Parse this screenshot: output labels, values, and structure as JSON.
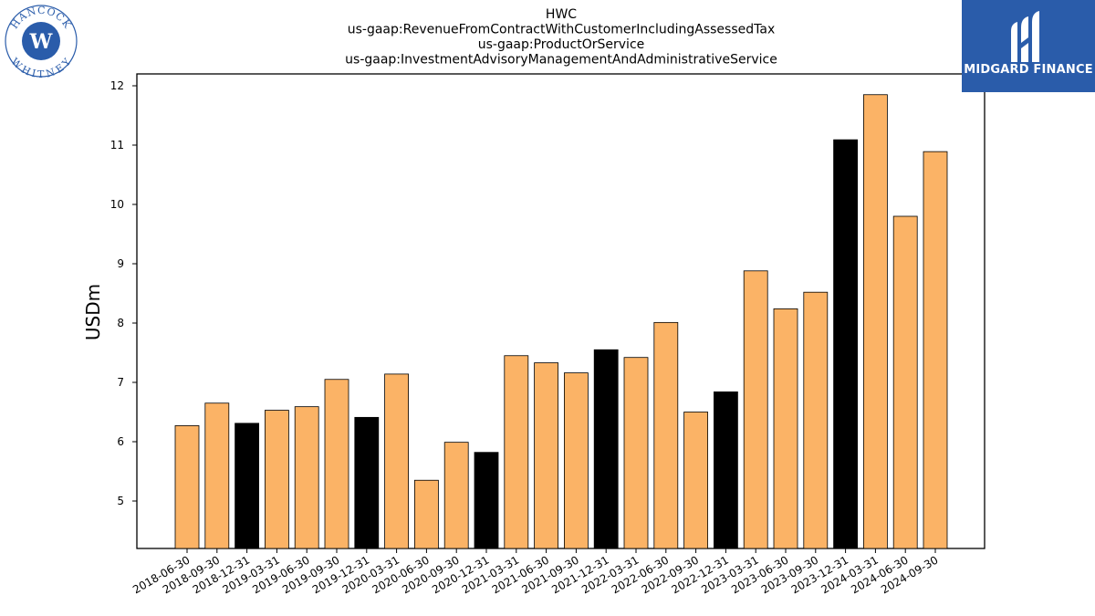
{
  "header": {
    "title_lines": [
      "HWC",
      "us-gaap:RevenueFromContractWithCustomerIncludingAssessedTax",
      "us-gaap:ProductOrService",
      "us-gaap:InvestmentAdvisoryManagementAndAdministrativeService"
    ]
  },
  "logo": {
    "name": "HANCOCK WHITNEY",
    "top_text": "HANCOCK",
    "bottom_text": "WHITNEY",
    "color": "#2a5caa"
  },
  "brand": {
    "name": "MIDGARD FINANCE",
    "background": "#2a5caa"
  },
  "chart_data": {
    "type": "bar",
    "title": "HWC",
    "ylabel": "USDm",
    "xlabel": "",
    "ylim": [
      4.2,
      12.2
    ],
    "yticks": [
      5,
      6,
      7,
      8,
      9,
      10,
      11,
      12
    ],
    "grid": false,
    "colors": {
      "quarter": "#fbb366",
      "year_end": "#000000",
      "edge": "#000000"
    },
    "categories": [
      "2018-06-30",
      "2018-09-30",
      "2018-12-31",
      "2019-03-31",
      "2019-06-30",
      "2019-09-30",
      "2019-12-31",
      "2020-03-31",
      "2020-06-30",
      "2020-09-30",
      "2020-12-31",
      "2021-03-31",
      "2021-06-30",
      "2021-09-30",
      "2021-12-31",
      "2022-03-31",
      "2022-06-30",
      "2022-09-30",
      "2022-12-31",
      "2023-03-31",
      "2023-06-30",
      "2023-09-30",
      "2023-12-31",
      "2024-03-31",
      "2024-06-30",
      "2024-09-30"
    ],
    "values": [
      6.27,
      6.65,
      6.31,
      6.53,
      6.59,
      7.05,
      6.41,
      7.14,
      5.35,
      5.99,
      5.82,
      7.45,
      7.33,
      7.16,
      7.55,
      7.42,
      8.01,
      6.5,
      6.84,
      8.88,
      8.24,
      8.52,
      11.09,
      11.85,
      9.8,
      10.89
    ],
    "year_end": [
      false,
      false,
      true,
      false,
      false,
      false,
      true,
      false,
      false,
      false,
      true,
      false,
      false,
      false,
      true,
      false,
      false,
      false,
      true,
      false,
      false,
      false,
      true,
      false,
      false,
      false
    ]
  }
}
